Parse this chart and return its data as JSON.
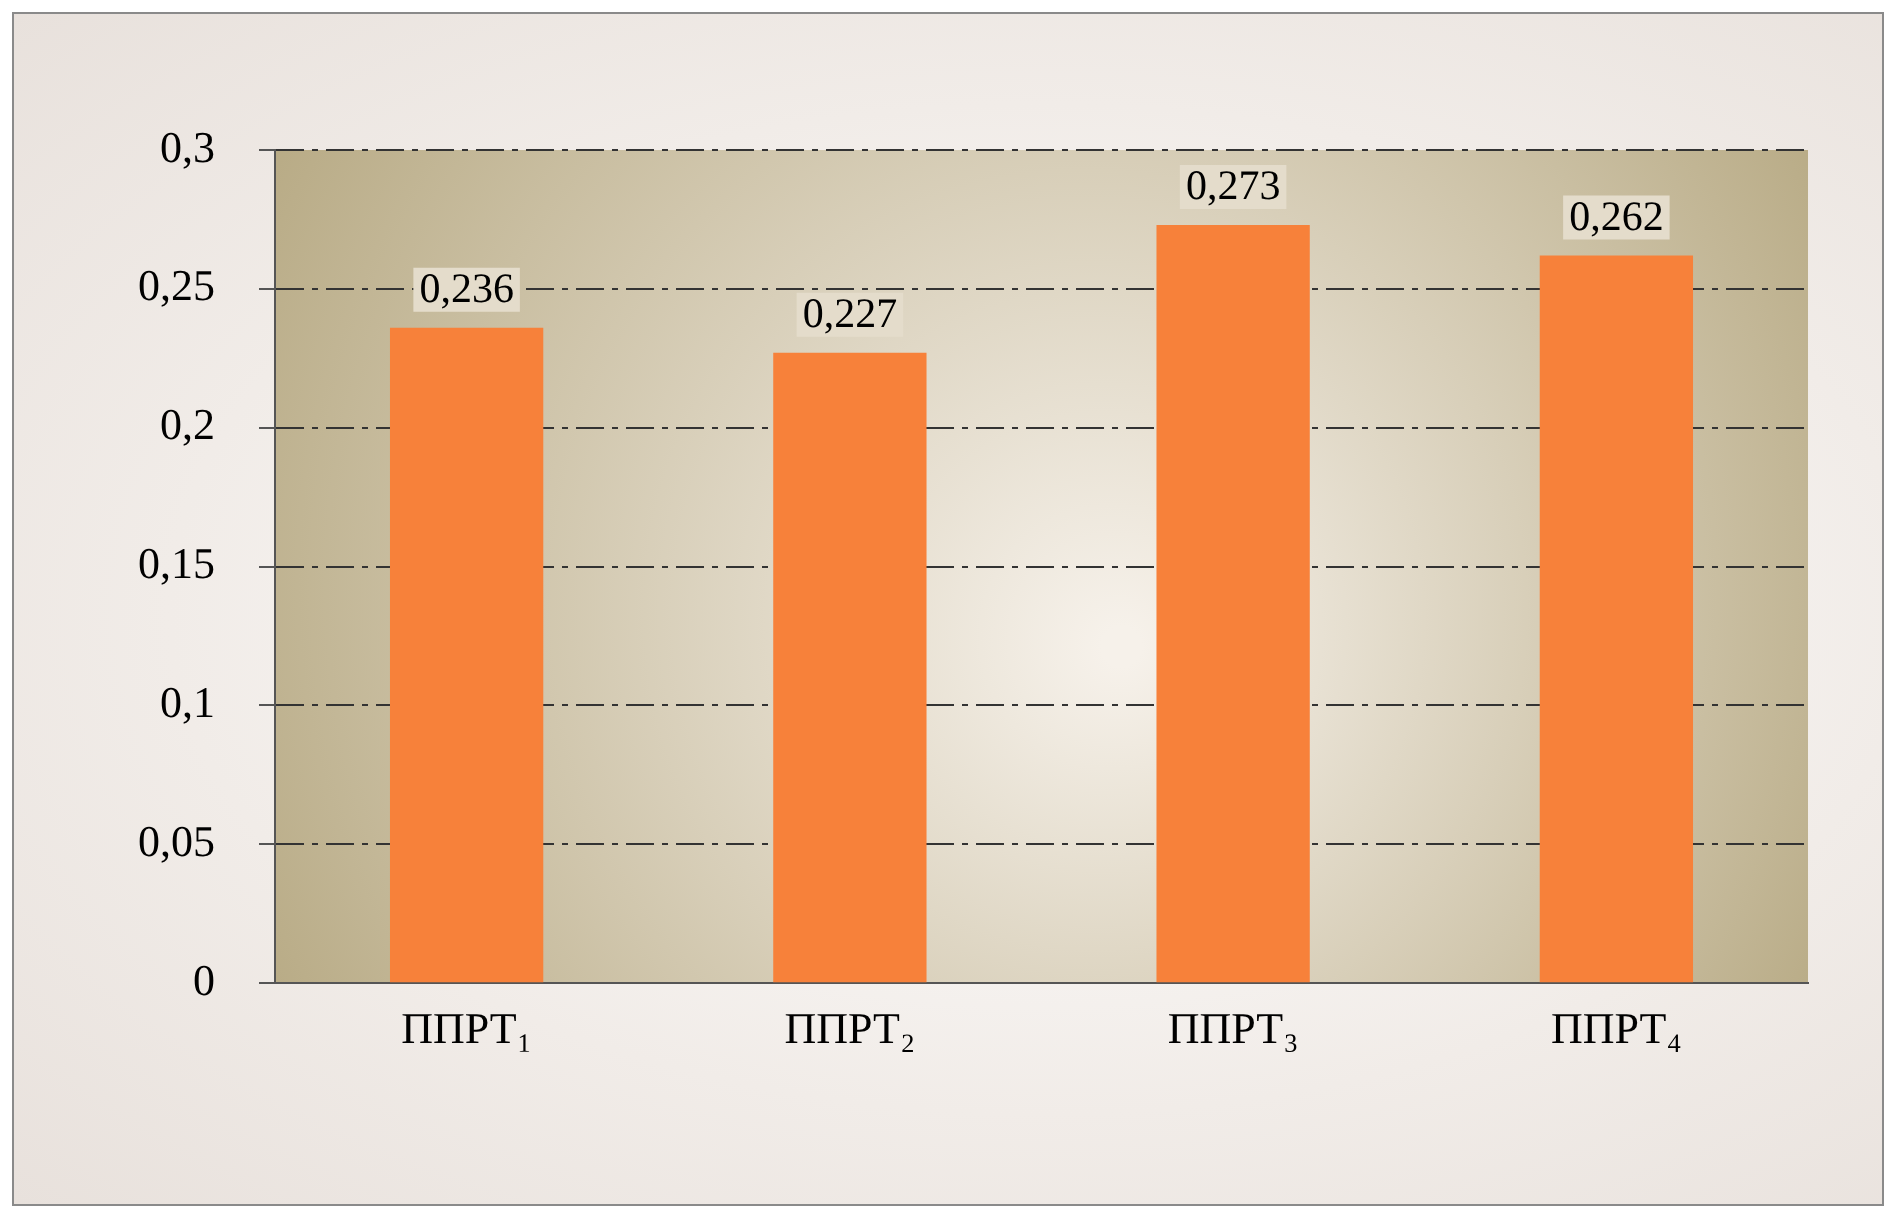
{
  "chart_data": {
    "type": "bar",
    "categories": [
      "ППРТ₁",
      "ППРТ₂",
      "ППРТ₃",
      "ППРТ₄"
    ],
    "values": [
      0.236,
      0.227,
      0.273,
      0.262
    ],
    "value_labels": [
      "0,236",
      "0,227",
      "0,273",
      "0,262"
    ],
    "color": "#f7813a",
    "ylim": [
      0,
      0.3
    ],
    "yticks": [
      {
        "value": 0,
        "label": "0"
      },
      {
        "value": 0.05,
        "label": "0,05"
      },
      {
        "value": 0.1,
        "label": "0,1"
      },
      {
        "value": 0.15,
        "label": "0,15"
      },
      {
        "value": 0.2,
        "label": "0,2"
      },
      {
        "value": 0.25,
        "label": "0,25"
      },
      {
        "value": 0.3,
        "label": "0,3"
      }
    ],
    "grid": "y",
    "line_style": "dashed"
  }
}
